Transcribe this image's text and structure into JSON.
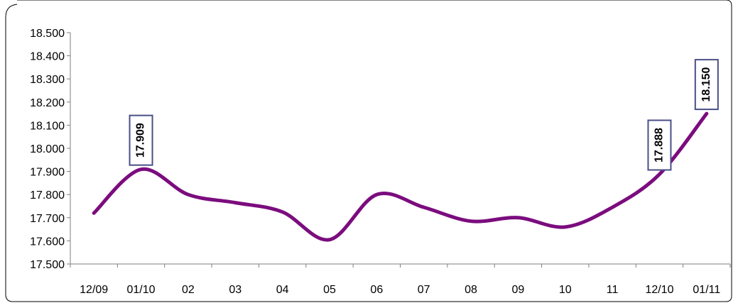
{
  "chart_data": {
    "type": "line",
    "categories": [
      "12/09",
      "01/10",
      "02",
      "03",
      "04",
      "05",
      "06",
      "07",
      "08",
      "09",
      "10",
      "11",
      "12/10",
      "01/11"
    ],
    "series": [
      {
        "values": [
          17720,
          17909,
          17800,
          17765,
          17725,
          17605,
          17800,
          17745,
          17685,
          17700,
          17660,
          17745,
          17888,
          18150
        ]
      }
    ],
    "data_labels": [
      {
        "index": 1,
        "text": "17.909"
      },
      {
        "index": 12,
        "text": "17.888"
      },
      {
        "index": 13,
        "text": "18.150"
      }
    ],
    "y_ticks": [
      {
        "value": 17500,
        "label": "17.500"
      },
      {
        "value": 17600,
        "label": "17.600"
      },
      {
        "value": 17700,
        "label": "17.700"
      },
      {
        "value": 17800,
        "label": "17.800"
      },
      {
        "value": 17900,
        "label": "17.900"
      },
      {
        "value": 18000,
        "label": "18.000"
      },
      {
        "value": 18100,
        "label": "18.100"
      },
      {
        "value": 18200,
        "label": "18.200"
      },
      {
        "value": 18300,
        "label": "18.300"
      },
      {
        "value": 18400,
        "label": "18.400"
      },
      {
        "value": 18500,
        "label": "18.500"
      }
    ],
    "ylim": [
      17500,
      18500
    ],
    "title": "",
    "xlabel": "",
    "ylabel": "",
    "grid": false,
    "legend": "none",
    "colors": {
      "line": "#7b0c7e",
      "label_border": "#4a4f86",
      "frame": "#000000",
      "axis": "#7f7f7f"
    }
  }
}
